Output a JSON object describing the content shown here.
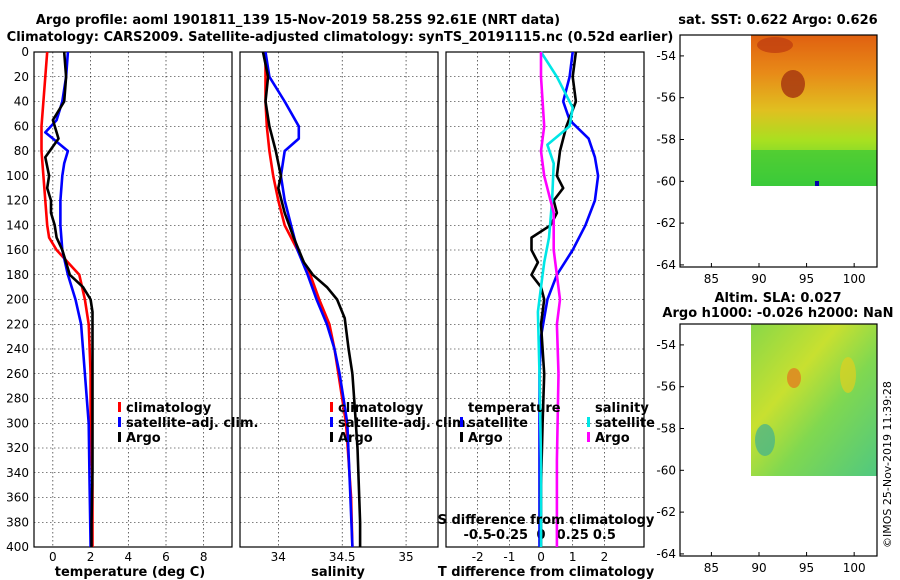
{
  "title_line1": "Argo profile: aoml 1901811_139 15-Nov-2019 58.25S 92.61E (NRT data)",
  "title_line2": "Climatology: CARS2009. Satellite-adjusted climatology: synTS_20191115.nc (0.52d earlier)",
  "timestamp": "©IMOS 25-Nov-2019 11:39:28",
  "colors": {
    "red": "#ff0000",
    "blue": "#0000ff",
    "black": "#000000",
    "magenta": "#ff00ff",
    "cyan": "#00e6e6"
  },
  "chart_data": [
    {
      "type": "line",
      "name": "temperature",
      "xlabel": "temperature (deg C)",
      "ylabel": "",
      "xlim": [
        -1,
        9.5
      ],
      "ylim": [
        400,
        0
      ],
      "xticks": [
        "0",
        "2",
        "4",
        "6",
        "8"
      ],
      "xtick_values": [
        0,
        2,
        4,
        6,
        8
      ],
      "yticks": [
        "0",
        "20",
        "40",
        "60",
        "80",
        "100",
        "120",
        "140",
        "160",
        "180",
        "200",
        "220",
        "240",
        "260",
        "280",
        "300",
        "320",
        "340",
        "360",
        "380",
        "400"
      ],
      "ytick_values": [
        0,
        20,
        40,
        60,
        80,
        100,
        120,
        140,
        160,
        180,
        200,
        220,
        240,
        260,
        280,
        300,
        320,
        340,
        360,
        380,
        400
      ],
      "legend": [
        "climatology",
        "satellite-adj. clim.",
        "Argo"
      ],
      "series": [
        {
          "name": "climatology",
          "color": "red",
          "x": [
            -0.3,
            -0.4,
            -0.5,
            -0.6,
            -0.6,
            -0.5,
            -0.4,
            -0.3,
            -0.2,
            0.2,
            0.8,
            1.4,
            1.7,
            1.9,
            2.0,
            2.0,
            2.1,
            2.1
          ],
          "y": [
            0,
            20,
            40,
            60,
            80,
            100,
            120,
            140,
            150,
            160,
            170,
            180,
            200,
            220,
            260,
            300,
            350,
            400
          ]
        },
        {
          "name": "satellite-adj. clim.",
          "color": "blue",
          "x": [
            0.8,
            0.7,
            0.5,
            0.2,
            -0.4,
            0.0,
            0.8,
            0.6,
            0.5,
            0.4,
            0.4,
            0.5,
            0.8,
            1.2,
            1.5,
            1.7,
            1.9,
            1.95,
            2.0
          ],
          "y": [
            0,
            20,
            40,
            55,
            65,
            70,
            80,
            90,
            100,
            120,
            140,
            160,
            180,
            200,
            220,
            260,
            300,
            350,
            400
          ]
        },
        {
          "name": "Argo",
          "color": "black",
          "x": [
            0.6,
            0.7,
            0.6,
            0.0,
            0.3,
            -0.4,
            -0.2,
            -0.3,
            -0.1,
            -0.1,
            0.1,
            0.2,
            0.5,
            0.9,
            1.6,
            2.0,
            2.1,
            2.1,
            2.1,
            2.1,
            2.1,
            2.05,
            2.05
          ],
          "y": [
            0,
            20,
            40,
            55,
            70,
            85,
            100,
            110,
            120,
            130,
            140,
            150,
            160,
            180,
            190,
            200,
            210,
            215,
            260,
            300,
            340,
            380,
            400
          ]
        }
      ]
    },
    {
      "type": "line",
      "name": "salinity",
      "xlabel": "salinity",
      "xlim": [
        33.7,
        35.25
      ],
      "ylim": [
        400,
        0
      ],
      "xticks": [
        "34",
        "34.5",
        "35"
      ],
      "xtick_values": [
        34,
        34.5,
        35
      ],
      "legend": [
        "climatology",
        "satellite-adj. clim.",
        "Argo"
      ],
      "series": [
        {
          "name": "climatology",
          "color": "red",
          "x": [
            33.9,
            33.9,
            33.9,
            33.91,
            33.93,
            33.96,
            34.0,
            34.05,
            34.15,
            34.25,
            34.32,
            34.4,
            34.44,
            34.47,
            34.5,
            34.53,
            34.55,
            34.57,
            34.58
          ],
          "y": [
            0,
            20,
            40,
            60,
            80,
            100,
            120,
            140,
            160,
            180,
            200,
            220,
            240,
            260,
            280,
            300,
            330,
            360,
            400
          ]
        },
        {
          "name": "satellite-adj. clim.",
          "color": "blue",
          "x": [
            33.9,
            33.93,
            34.05,
            34.16,
            34.16,
            34.05,
            34.02,
            34.05,
            34.1,
            34.15,
            34.23,
            34.3,
            34.38,
            34.44,
            34.48,
            34.51,
            34.54,
            34.56,
            34.58
          ],
          "y": [
            0,
            20,
            40,
            60,
            70,
            80,
            100,
            120,
            140,
            160,
            180,
            200,
            220,
            240,
            260,
            280,
            300,
            350,
            400
          ]
        },
        {
          "name": "Argo",
          "color": "black",
          "x": [
            33.88,
            33.92,
            33.9,
            33.93,
            33.98,
            34.02,
            34.0,
            34.05,
            34.12,
            34.2,
            34.27,
            34.38,
            34.46,
            34.52,
            34.55,
            34.58,
            34.6,
            34.62,
            34.63,
            34.64,
            34.64
          ],
          "y": [
            0,
            20,
            40,
            60,
            80,
            100,
            110,
            130,
            150,
            170,
            180,
            190,
            200,
            215,
            240,
            260,
            290,
            320,
            350,
            380,
            400
          ]
        }
      ]
    },
    {
      "type": "line",
      "name": "difference from climatology",
      "xlabel": "T difference from climatology",
      "x2label": "S difference from climatology",
      "xlim": [
        -3,
        3.25
      ],
      "ylim": [
        400,
        0
      ],
      "xticks": [
        "-2",
        "-1",
        "0",
        "1",
        "2"
      ],
      "xtick_values": [
        -2,
        -1,
        0,
        1,
        2
      ],
      "x2ticks": [
        "-0.5",
        "-0.25",
        "0",
        "0.25",
        "0.5"
      ],
      "x2tick_values": [
        -0.5,
        -0.25,
        0,
        0.25,
        0.5
      ],
      "legend_temperature_title": "temperature",
      "legend_salinity_title": "salinity",
      "legend": [
        "satellite",
        "Argo",
        "satellite",
        "Argo"
      ],
      "series": [
        {
          "name": "T satellite",
          "color": "blue",
          "x": [
            1.0,
            0.9,
            0.7,
            0.9,
            1.5,
            1.7,
            1.8,
            1.7,
            1.4,
            1.0,
            0.5,
            0.2,
            0.0,
            -0.05,
            -0.05,
            -0.05,
            -0.05
          ],
          "y": [
            0,
            20,
            40,
            55,
            70,
            85,
            100,
            120,
            140,
            160,
            180,
            200,
            230,
            260,
            300,
            350,
            400
          ]
        },
        {
          "name": "T Argo",
          "color": "black",
          "x": [
            1.1,
            1.0,
            1.1,
            0.8,
            0.6,
            0.5,
            0.7,
            0.4,
            0.5,
            0.3,
            -0.3,
            -0.3,
            -0.1,
            -0.3,
            0.0,
            0.1,
            0.0,
            0.1,
            0.05,
            0.0,
            0.0
          ],
          "y": [
            0,
            20,
            40,
            60,
            80,
            100,
            110,
            120,
            130,
            140,
            150,
            160,
            170,
            180,
            190,
            200,
            220,
            260,
            300,
            350,
            400
          ]
        },
        {
          "name": "S satellite",
          "color": "cyan",
          "x": [
            0.0,
            0.5,
            1.0,
            0.9,
            0.2,
            0.4,
            0.35,
            0.25,
            0.1,
            0.0,
            -0.1,
            -0.05,
            0.0,
            0.0
          ],
          "y": [
            0,
            20,
            45,
            60,
            75,
            90,
            120,
            150,
            170,
            190,
            210,
            260,
            330,
            400
          ]
        },
        {
          "name": "S Argo",
          "color": "magenta",
          "x": [
            0.0,
            0.0,
            0.05,
            0.1,
            0.0,
            0.1,
            0.4,
            0.4,
            0.6,
            0.5,
            0.55,
            0.5,
            0.5
          ],
          "y": [
            0,
            20,
            40,
            60,
            80,
            100,
            130,
            160,
            200,
            220,
            260,
            330,
            400
          ]
        }
      ]
    }
  ],
  "maps": [
    {
      "title": "sat. SST: 0.622 Argo: 0.626",
      "xticks": [
        "85",
        "90",
        "95",
        "100"
      ],
      "yticks": [
        "-54",
        "-56",
        "-58",
        "-60",
        "-62",
        "-64"
      ]
    },
    {
      "title_line1": "Altim. SLA: 0.027",
      "title_line2": "Argo h1000: -0.026 h2000: NaN",
      "xticks": [
        "85",
        "90",
        "95",
        "100"
      ],
      "yticks": [
        "-54",
        "-56",
        "-58",
        "-60",
        "-62",
        "-64"
      ]
    }
  ]
}
